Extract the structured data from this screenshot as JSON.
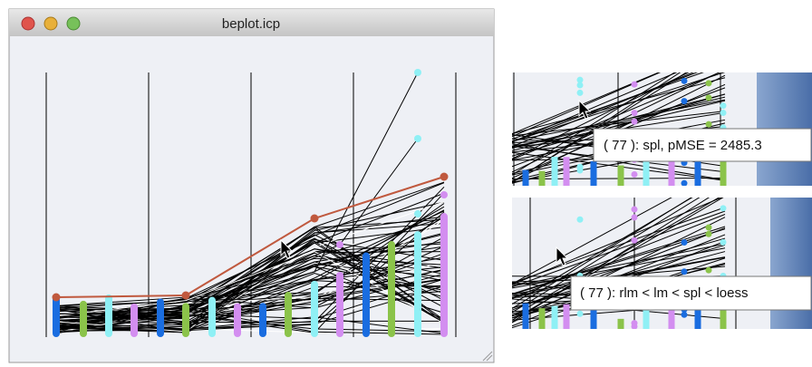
{
  "window": {
    "title": "beplot.icp"
  },
  "tooltips": [
    "( 77 ): spl, pMSE = 2485.3",
    "( 77 ): rlm < lm < spl < loess"
  ]
}
